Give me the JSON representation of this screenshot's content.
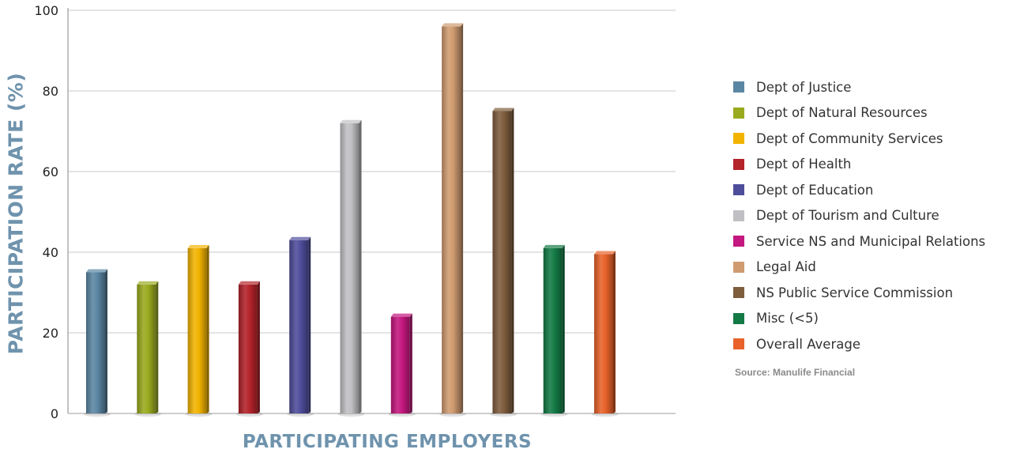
{
  "chart_data": {
    "type": "bar",
    "title": "",
    "xlabel": "PARTICIPATING EMPLOYERS",
    "ylabel": "PARTICIPATION RATE (%)",
    "ylim": [
      0,
      100
    ],
    "yticks": [
      "0",
      "20",
      "40",
      "60",
      "80",
      "100"
    ],
    "grid": true,
    "legend_position": "right",
    "categories": [
      "Dept of Justice",
      "Dept of Natural Resources",
      "Dept of Community Services",
      "Dept of Health",
      "Dept of Education",
      "Dept of Tourism and Culture",
      "Service NS and Municipal Relations",
      "Legal Aid",
      "NS Public Service Commission",
      "Misc (<5)",
      "Overall Average"
    ],
    "values": [
      35,
      32,
      41,
      32,
      43,
      72,
      24,
      96,
      75,
      41,
      39.5
    ],
    "colors": [
      "#5b86a3",
      "#9aaa1e",
      "#f2b300",
      "#b3232a",
      "#4e4d9b",
      "#c0c0c4",
      "#c4177f",
      "#cf9b70",
      "#7e5d3d",
      "#137a45",
      "#e8622a"
    ],
    "source": "Source: Manulife Financial"
  }
}
